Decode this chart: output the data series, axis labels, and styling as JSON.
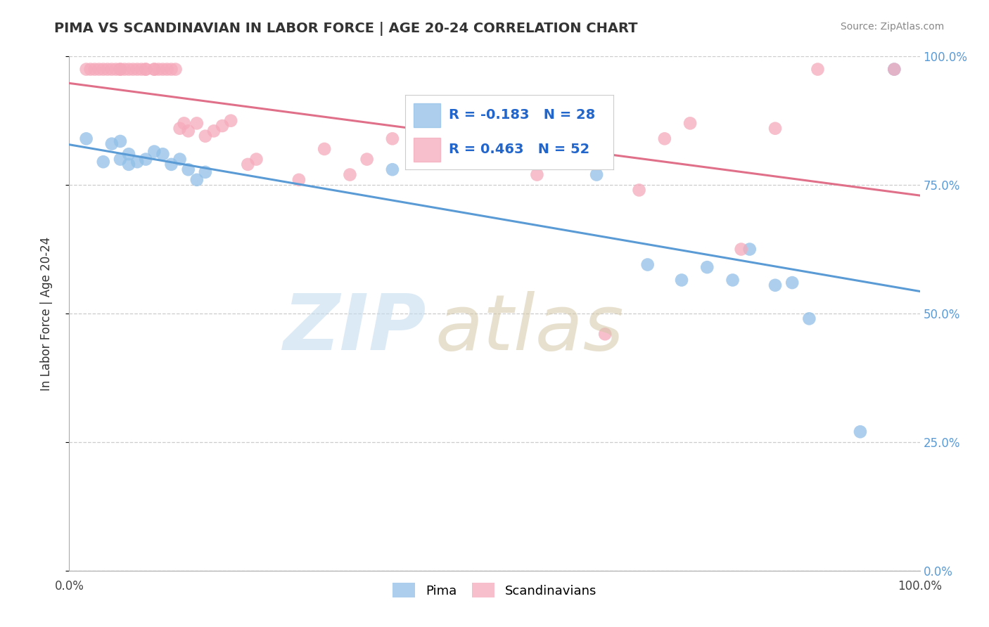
{
  "title": "PIMA VS SCANDINAVIAN IN LABOR FORCE | AGE 20-24 CORRELATION CHART",
  "source": "Source: ZipAtlas.com",
  "ylabel": "In Labor Force | Age 20-24",
  "pima_color": "#92C0E8",
  "scandinavian_color": "#F5AABB",
  "pima_line_color": "#5B9BD5",
  "scandinavian_line_color": "#E0708A",
  "pima_R": -0.183,
  "pima_N": 28,
  "scandinavian_R": 0.463,
  "scandinavian_N": 52,
  "pima_scatter_x": [
    0.02,
    0.04,
    0.05,
    0.06,
    0.06,
    0.07,
    0.07,
    0.08,
    0.09,
    0.1,
    0.11,
    0.12,
    0.13,
    0.14,
    0.15,
    0.16,
    0.38,
    0.62,
    0.68,
    0.72,
    0.75,
    0.78,
    0.8,
    0.83,
    0.85,
    0.87,
    0.93,
    0.97
  ],
  "pima_scatter_y": [
    0.84,
    0.795,
    0.83,
    0.8,
    0.835,
    0.79,
    0.81,
    0.795,
    0.8,
    0.815,
    0.81,
    0.79,
    0.8,
    0.78,
    0.76,
    0.775,
    0.78,
    0.77,
    0.595,
    0.565,
    0.59,
    0.565,
    0.625,
    0.555,
    0.56,
    0.49,
    0.27,
    0.975
  ],
  "scandinavian_scatter_x": [
    0.02,
    0.025,
    0.03,
    0.035,
    0.04,
    0.045,
    0.05,
    0.055,
    0.06,
    0.06,
    0.065,
    0.07,
    0.075,
    0.08,
    0.085,
    0.09,
    0.09,
    0.1,
    0.1,
    0.105,
    0.11,
    0.115,
    0.12,
    0.125,
    0.13,
    0.135,
    0.14,
    0.15,
    0.16,
    0.17,
    0.18,
    0.19,
    0.21,
    0.22,
    0.27,
    0.3,
    0.33,
    0.35,
    0.38,
    0.43,
    0.48,
    0.5,
    0.55,
    0.6,
    0.63,
    0.67,
    0.7,
    0.73,
    0.79,
    0.83,
    0.88,
    0.97
  ],
  "scandinavian_scatter_y": [
    0.975,
    0.975,
    0.975,
    0.975,
    0.975,
    0.975,
    0.975,
    0.975,
    0.975,
    0.975,
    0.975,
    0.975,
    0.975,
    0.975,
    0.975,
    0.975,
    0.975,
    0.975,
    0.975,
    0.975,
    0.975,
    0.975,
    0.975,
    0.975,
    0.86,
    0.87,
    0.855,
    0.87,
    0.845,
    0.855,
    0.865,
    0.875,
    0.79,
    0.8,
    0.76,
    0.82,
    0.77,
    0.8,
    0.84,
    0.8,
    0.81,
    0.84,
    0.77,
    0.835,
    0.46,
    0.74,
    0.84,
    0.87,
    0.625,
    0.86,
    0.975,
    0.975
  ]
}
